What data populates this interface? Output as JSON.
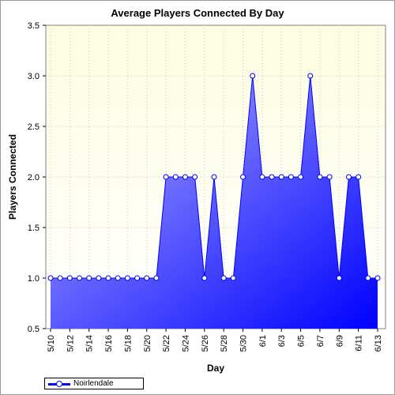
{
  "chart_data": {
    "type": "area",
    "title": "Average Players Connected By Day",
    "xlabel": "Day",
    "ylabel": "Players Connected",
    "ylim": [
      0.5,
      3.5
    ],
    "yticks": [
      "0.5",
      "1.0",
      "1.5",
      "2.0",
      "2.5",
      "3.0",
      "3.5"
    ],
    "grid": true,
    "legend_position": "bottom-left",
    "x_tick_labels": [
      "5/10",
      "5/12",
      "5/14",
      "5/16",
      "5/18",
      "5/20",
      "5/22",
      "5/24",
      "5/26",
      "5/28",
      "5/30",
      "6/1",
      "6/3",
      "6/5",
      "6/7",
      "6/9",
      "6/11",
      "6/13"
    ],
    "x": [
      "5/10",
      "5/11",
      "5/12",
      "5/13",
      "5/14",
      "5/15",
      "5/16",
      "5/17",
      "5/18",
      "5/19",
      "5/20",
      "5/21",
      "5/22",
      "5/23",
      "5/24",
      "5/25",
      "5/26",
      "5/27",
      "5/28",
      "5/29",
      "5/30",
      "5/31",
      "6/1",
      "6/2",
      "6/3",
      "6/4",
      "6/5",
      "6/6",
      "6/7",
      "6/8",
      "6/9",
      "6/10",
      "6/11",
      "6/12",
      "6/13"
    ],
    "series": [
      {
        "name": "Noirlendale",
        "values": [
          1,
          1,
          1,
          1,
          1,
          1,
          1,
          1,
          1,
          1,
          1,
          1,
          2,
          2,
          2,
          2,
          1,
          2,
          1,
          1,
          2,
          3,
          2,
          2,
          2,
          2,
          2,
          3,
          2,
          2,
          1,
          2,
          2,
          1,
          1
        ]
      }
    ],
    "colors": {
      "line": "#0000ff",
      "fill_light": "#a8a8ff",
      "fill_dark": "#0000ff",
      "plot_bg_top": "#fdfde0",
      "marker_fill": "#ffffff"
    }
  }
}
